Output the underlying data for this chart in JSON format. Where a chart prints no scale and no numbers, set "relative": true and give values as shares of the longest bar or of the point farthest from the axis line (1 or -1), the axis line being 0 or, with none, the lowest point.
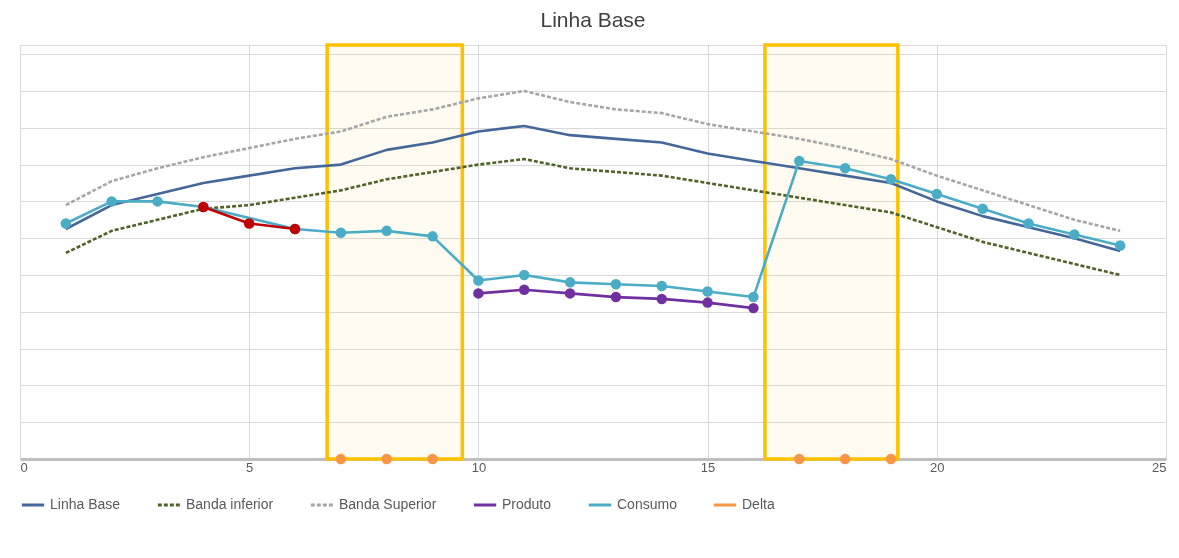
{
  "chart_data": {
    "type": "line",
    "title": "Linha Base",
    "relative": true,
    "x": [
      1,
      2,
      3,
      4,
      5,
      6,
      7,
      8,
      9,
      10,
      11,
      12,
      13,
      14,
      15,
      16,
      17,
      18,
      19,
      20,
      21,
      22,
      23,
      24
    ],
    "xlim": [
      0,
      25
    ],
    "xticks": [
      0,
      5,
      10,
      15,
      20,
      25
    ],
    "grid": true,
    "legend": "bottom",
    "bands": [
      {
        "axis": "x",
        "from": 6.7,
        "to": 9.65,
        "color": "#ffc000"
      },
      {
        "axis": "x",
        "from": 16.25,
        "to": 19.15,
        "color": "#ffc000"
      }
    ],
    "series": [
      {
        "name": "Linha Base",
        "color": "#44679a",
        "marker": "none",
        "line_style": "solid",
        "values": [
          0.625,
          0.69,
          0.72,
          0.75,
          0.77,
          0.79,
          0.8,
          0.84,
          0.86,
          0.89,
          0.905,
          0.88,
          0.87,
          0.86,
          0.83,
          0.81,
          0.79,
          0.77,
          0.75,
          0.7,
          0.66,
          0.63,
          0.6,
          0.565
        ]
      },
      {
        "name": "Banda inferior",
        "color": "#4f6228",
        "marker": "none",
        "line_style": "dashed",
        "values": [
          0.56,
          0.62,
          0.65,
          0.68,
          0.69,
          0.71,
          0.73,
          0.76,
          0.78,
          0.8,
          0.815,
          0.79,
          0.78,
          0.77,
          0.75,
          0.73,
          0.71,
          0.69,
          0.67,
          0.63,
          0.59,
          0.56,
          0.53,
          0.5
        ]
      },
      {
        "name": "Banda Superior",
        "color": "#a6a6a6",
        "marker": "none",
        "line_style": "dashed",
        "values": [
          0.69,
          0.755,
          0.79,
          0.82,
          0.845,
          0.87,
          0.89,
          0.93,
          0.95,
          0.98,
          1,
          0.97,
          0.95,
          0.94,
          0.91,
          0.89,
          0.87,
          0.845,
          0.815,
          0.77,
          0.73,
          0.69,
          0.65,
          0.62
        ]
      },
      {
        "name": "Produto",
        "color": "#7030a0",
        "marker": "circle",
        "line_style": "solid",
        "x": [
          10,
          11,
          12,
          13,
          14,
          15,
          16
        ],
        "values": [
          0.45,
          0.46,
          0.45,
          0.44,
          0.435,
          0.425,
          0.41
        ]
      },
      {
        "name": "Consumo",
        "color": "#4bacc6",
        "marker": "circle",
        "line_style": "solid",
        "values": [
          0.64,
          0.7,
          0.7,
          0.685,
          null,
          0.625,
          0.615,
          0.62,
          0.605,
          0.485,
          0.5,
          0.48,
          0.475,
          0.47,
          0.455,
          0.44,
          0.81,
          0.79,
          0.76,
          0.72,
          0.68,
          0.64,
          0.61,
          0.58
        ]
      },
      {
        "name": "Delta",
        "color": "#f79646",
        "type": "scatter",
        "marker": "circle",
        "x": [
          7,
          8,
          9,
          17,
          18,
          19
        ],
        "values": [
          0,
          0,
          0,
          0,
          0,
          0
        ]
      },
      {
        "color": "#c00000",
        "marker": "circle",
        "line_style": "solid",
        "x": [
          4,
          5,
          6
        ],
        "values": [
          0.685,
          0.64,
          0.625
        ]
      }
    ]
  }
}
